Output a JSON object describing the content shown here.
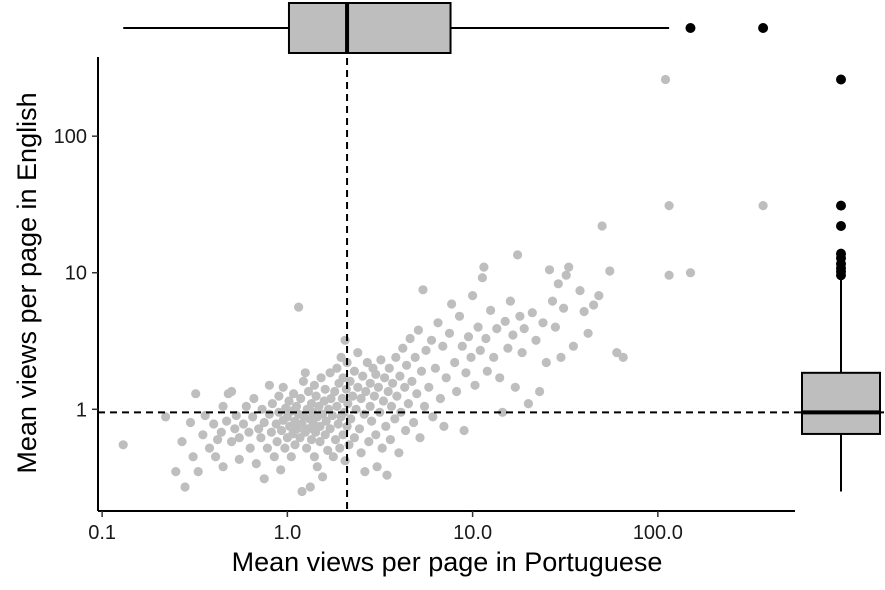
{
  "chart_data": {
    "type": "scatter",
    "title": "",
    "xlabel": "Mean views per page in Portuguese",
    "ylabel": "Mean views per page in English",
    "x_scale": "log10",
    "y_scale": "log10",
    "xlim": [
      0.095,
      550
    ],
    "ylim": [
      0.18,
      380
    ],
    "x_ticks": [
      {
        "value": 0.1,
        "label": "0.1"
      },
      {
        "value": 1,
        "label": "1.0"
      },
      {
        "value": 10,
        "label": "10.0"
      },
      {
        "value": 100,
        "label": "100.0"
      }
    ],
    "y_ticks": [
      {
        "value": 1,
        "label": "1"
      },
      {
        "value": 10,
        "label": "10"
      },
      {
        "value": 100,
        "label": "100"
      }
    ],
    "grid": false,
    "colors": {
      "points": "#bebebe",
      "box_fill": "#bebebe",
      "outliers": "#000000",
      "median_lines": "#000000"
    },
    "median_lines": {
      "x": 2.1,
      "y": 0.95
    },
    "x_boxplot": {
      "whisker_low": 0.13,
      "q1": 1.02,
      "median": 2.1,
      "q3": 7.6,
      "whisker_high": 115,
      "outliers": [
        150,
        370
      ]
    },
    "y_boxplot": {
      "whisker_low": 0.25,
      "q1": 0.66,
      "median": 0.95,
      "q3": 1.85,
      "whisker_high": 9.2,
      "outliers": [
        9.6,
        10.2,
        10.8,
        11.6,
        12.8,
        13.8,
        22,
        31,
        260
      ]
    },
    "points": [
      [
        0.13,
        0.55
      ],
      [
        0.22,
        0.88
      ],
      [
        0.25,
        0.35
      ],
      [
        0.27,
        0.58
      ],
      [
        0.28,
        0.27
      ],
      [
        0.3,
        0.8
      ],
      [
        0.31,
        0.45
      ],
      [
        0.32,
        1.3
      ],
      [
        0.33,
        0.35
      ],
      [
        0.35,
        0.65
      ],
      [
        0.36,
        0.9
      ],
      [
        0.38,
        0.52
      ],
      [
        0.4,
        0.78
      ],
      [
        0.41,
        0.45
      ],
      [
        0.42,
        0.6
      ],
      [
        0.44,
        0.68
      ],
      [
        0.45,
        1.05
      ],
      [
        0.45,
        0.38
      ],
      [
        0.47,
        0.82
      ],
      [
        0.48,
        1.3
      ],
      [
        0.5,
        1.35
      ],
      [
        0.5,
        0.58
      ],
      [
        0.52,
        0.72
      ],
      [
        0.53,
        0.9
      ],
      [
        0.55,
        0.62
      ],
      [
        0.55,
        0.43
      ],
      [
        0.58,
        0.78
      ],
      [
        0.6,
        1.05
      ],
      [
        0.62,
        0.68
      ],
      [
        0.63,
        0.52
      ],
      [
        0.65,
        0.88
      ],
      [
        0.66,
        1.2
      ],
      [
        0.68,
        0.4
      ],
      [
        0.7,
        0.72
      ],
      [
        0.72,
        0.62
      ],
      [
        0.73,
        1.0
      ],
      [
        0.75,
        0.8
      ],
      [
        0.75,
        0.31
      ],
      [
        0.78,
        0.52
      ],
      [
        0.8,
        0.92
      ],
      [
        0.8,
        1.5
      ],
      [
        0.82,
        0.68
      ],
      [
        0.83,
        1.1
      ],
      [
        0.85,
        0.45
      ],
      [
        0.87,
        0.78
      ],
      [
        0.88,
        0.58
      ],
      [
        0.9,
        0.95
      ],
      [
        0.9,
        1.25
      ],
      [
        0.92,
        0.36
      ],
      [
        0.93,
        0.7
      ],
      [
        0.95,
        0.83
      ],
      [
        0.95,
        1.45
      ],
      [
        0.97,
        0.52
      ],
      [
        0.98,
        1.02
      ],
      [
        1.0,
        0.62
      ],
      [
        1.0,
        0.88
      ],
      [
        1.02,
        1.15
      ],
      [
        1.03,
        0.75
      ],
      [
        1.05,
        0.45
      ],
      [
        1.05,
        0.97
      ],
      [
        1.07,
        0.66
      ],
      [
        1.08,
        1.3
      ],
      [
        1.1,
        0.82
      ],
      [
        1.1,
        0.55
      ],
      [
        1.12,
        1.05
      ],
      [
        1.13,
        0.72
      ],
      [
        1.15,
        0.92
      ],
      [
        1.15,
        5.6
      ],
      [
        1.17,
        0.62
      ],
      [
        1.18,
        1.2
      ],
      [
        1.2,
        0.78
      ],
      [
        1.2,
        0.25
      ],
      [
        1.22,
        1.6
      ],
      [
        1.23,
        0.88
      ],
      [
        1.25,
        0.68
      ],
      [
        1.25,
        1.85
      ],
      [
        1.27,
        0.52
      ],
      [
        1.28,
        1.0
      ],
      [
        1.3,
        0.72
      ],
      [
        1.3,
        1.35
      ],
      [
        1.32,
        0.85
      ],
      [
        1.33,
        0.27
      ],
      [
        1.35,
        0.6
      ],
      [
        1.35,
        1.1
      ],
      [
        1.37,
        0.95
      ],
      [
        1.38,
        0.78
      ],
      [
        1.4,
        1.5
      ],
      [
        1.4,
        0.45
      ],
      [
        1.42,
        0.68
      ],
      [
        1.43,
        1.25
      ],
      [
        1.45,
        0.88
      ],
      [
        1.45,
        0.38
      ],
      [
        1.48,
        1.05
      ],
      [
        1.5,
        0.58
      ],
      [
        1.5,
        0.75
      ],
      [
        1.52,
        1.7
      ],
      [
        1.55,
        0.92
      ],
      [
        1.55,
        0.32
      ],
      [
        1.58,
        1.15
      ],
      [
        1.6,
        0.65
      ],
      [
        1.6,
        1.4
      ],
      [
        1.62,
        0.82
      ],
      [
        1.65,
        0.5
      ],
      [
        1.67,
        1.0
      ],
      [
        1.7,
        1.85
      ],
      [
        1.7,
        0.72
      ],
      [
        1.72,
        1.2
      ],
      [
        1.75,
        0.9
      ],
      [
        1.77,
        0.45
      ],
      [
        1.8,
        1.35
      ],
      [
        1.82,
        0.6
      ],
      [
        1.85,
        2.0
      ],
      [
        1.85,
        1.05
      ],
      [
        1.88,
        0.78
      ],
      [
        1.9,
        1.55
      ],
      [
        1.92,
        0.52
      ],
      [
        1.95,
        2.4
      ],
      [
        1.95,
        0.88
      ],
      [
        1.98,
        1.2
      ],
      [
        2.0,
        0.65
      ],
      [
        2.0,
        1.7
      ],
      [
        2.03,
        0.95
      ],
      [
        2.05,
        3.2
      ],
      [
        2.05,
        0.42
      ],
      [
        2.08,
        1.4
      ],
      [
        2.1,
        2.2
      ],
      [
        2.1,
        0.75
      ],
      [
        2.12,
        1.1
      ],
      [
        2.15,
        0.55
      ],
      [
        2.18,
        1.6
      ],
      [
        2.2,
        0.85
      ],
      [
        2.25,
        1.25
      ],
      [
        2.3,
        1.9
      ],
      [
        2.3,
        0.62
      ],
      [
        2.35,
        1.0
      ],
      [
        2.4,
        2.6
      ],
      [
        2.4,
        1.45
      ],
      [
        2.45,
        0.72
      ],
      [
        2.5,
        1.2
      ],
      [
        2.5,
        0.48
      ],
      [
        2.55,
        1.75
      ],
      [
        2.6,
        0.92
      ],
      [
        2.62,
        0.35
      ],
      [
        2.65,
        1.35
      ],
      [
        2.7,
        2.2
      ],
      [
        2.75,
        0.58
      ],
      [
        2.8,
        1.05
      ],
      [
        2.8,
        1.55
      ],
      [
        2.85,
        0.82
      ],
      [
        2.9,
        2.0
      ],
      [
        2.95,
        1.25
      ],
      [
        3.0,
        0.65
      ],
      [
        3.0,
        1.8
      ],
      [
        3.05,
        0.38
      ],
      [
        3.1,
        1.45
      ],
      [
        3.15,
        0.95
      ],
      [
        3.2,
        2.3
      ],
      [
        3.25,
        0.52
      ],
      [
        3.3,
        1.15
      ],
      [
        3.35,
        1.7
      ],
      [
        3.4,
        0.75
      ],
      [
        3.45,
        0.33
      ],
      [
        3.5,
        1.35
      ],
      [
        3.55,
        2.0
      ],
      [
        3.6,
        0.6
      ],
      [
        3.65,
        1.05
      ],
      [
        3.7,
        1.55
      ],
      [
        3.8,
        0.85
      ],
      [
        3.85,
        2.4
      ],
      [
        3.9,
        1.25
      ],
      [
        4.0,
        0.48
      ],
      [
        4.05,
        1.75
      ],
      [
        4.1,
        0.95
      ],
      [
        4.2,
        2.8
      ],
      [
        4.3,
        1.45
      ],
      [
        4.35,
        0.7
      ],
      [
        4.4,
        2.1
      ],
      [
        4.5,
        1.1
      ],
      [
        4.6,
        3.3
      ],
      [
        4.7,
        1.6
      ],
      [
        4.8,
        0.8
      ],
      [
        4.9,
        2.4
      ],
      [
        5.0,
        1.3
      ],
      [
        5.1,
        3.8
      ],
      [
        5.2,
        0.62
      ],
      [
        5.3,
        1.9
      ],
      [
        5.4,
        7.5
      ],
      [
        5.5,
        1.05
      ],
      [
        5.6,
        2.7
      ],
      [
        5.8,
        1.45
      ],
      [
        6.0,
        3.2
      ],
      [
        6.1,
        0.88
      ],
      [
        6.3,
        2.0
      ],
      [
        6.5,
        4.3
      ],
      [
        6.7,
        1.2
      ],
      [
        6.9,
        2.9
      ],
      [
        7.0,
        0.75
      ],
      [
        7.2,
        1.7
      ],
      [
        7.5,
        3.6
      ],
      [
        7.7,
        5.9
      ],
      [
        8.0,
        2.2
      ],
      [
        8.2,
        1.35
      ],
      [
        8.5,
        4.8
      ],
      [
        8.8,
        2.9
      ],
      [
        9.0,
        0.7
      ],
      [
        9.2,
        1.85
      ],
      [
        9.5,
        3.4
      ],
      [
        9.8,
        2.4
      ],
      [
        10.0,
        6.8
      ],
      [
        10.3,
        1.5
      ],
      [
        10.7,
        4.0
      ],
      [
        11.0,
        2.7
      ],
      [
        11.3,
        9.2
      ],
      [
        11.5,
        11.0
      ],
      [
        11.8,
        3.3
      ],
      [
        12.0,
        1.9
      ],
      [
        12.5,
        5.3
      ],
      [
        13.0,
        2.4
      ],
      [
        13.5,
        3.9
      ],
      [
        14.0,
        1.7
      ],
      [
        14.5,
        0.95
      ],
      [
        15.0,
        4.4
      ],
      [
        15.5,
        2.8
      ],
      [
        16.0,
        6.2
      ],
      [
        16.5,
        3.5
      ],
      [
        17.0,
        1.45
      ],
      [
        17.5,
        13.5
      ],
      [
        18.0,
        4.8
      ],
      [
        18.5,
        2.6
      ],
      [
        19.0,
        3.9
      ],
      [
        20.0,
        1.1
      ],
      [
        21.0,
        5.1
      ],
      [
        22.0,
        3.2
      ],
      [
        23.0,
        1.35
      ],
      [
        24.0,
        4.3
      ],
      [
        25.0,
        2.2
      ],
      [
        26.0,
        10.5
      ],
      [
        27.0,
        6.2
      ],
      [
        28.0,
        4.0
      ],
      [
        29.0,
        8.3
      ],
      [
        30.0,
        2.4
      ],
      [
        31.0,
        5.5
      ],
      [
        32.0,
        9.6
      ],
      [
        33.0,
        11.0
      ],
      [
        35.0,
        2.9
      ],
      [
        38.0,
        7.4
      ],
      [
        40.0,
        5.2
      ],
      [
        42.0,
        3.6
      ],
      [
        45.0,
        5.8
      ],
      [
        48.0,
        6.8
      ],
      [
        50.0,
        22.0
      ],
      [
        55.0,
        10.3
      ],
      [
        60.0,
        2.6
      ],
      [
        65.0,
        2.4
      ],
      [
        110.0,
        260.0
      ],
      [
        115.0,
        31.0
      ],
      [
        115.0,
        9.6
      ],
      [
        150.0,
        10.0
      ],
      [
        370.0,
        31.0
      ]
    ]
  }
}
